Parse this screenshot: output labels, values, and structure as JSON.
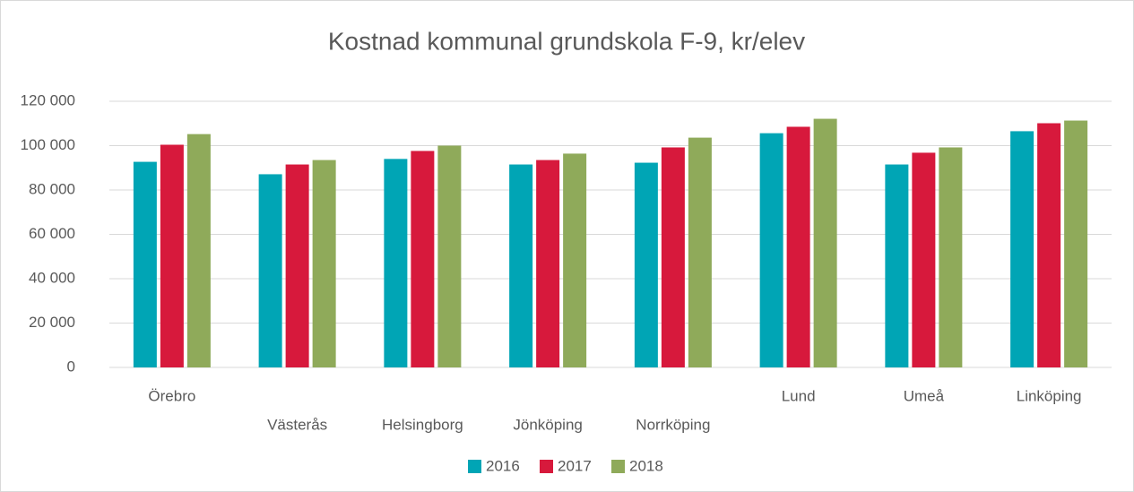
{
  "chart_data": {
    "type": "bar",
    "title": "Kostnad kommunal grundskola F-9, kr/elev",
    "categories": [
      "Örebro",
      "Västerås",
      "Helsingborg",
      "Jönköping",
      "Norrköping",
      "Lund",
      "Umeå",
      "Linköping"
    ],
    "series": [
      {
        "name": "2016",
        "color": "#00a5b5",
        "values": [
          92700,
          87100,
          94000,
          91500,
          92300,
          105600,
          91500,
          106500
        ]
      },
      {
        "name": "2017",
        "color": "#d7193c",
        "values": [
          100400,
          91500,
          97600,
          93500,
          99200,
          108500,
          96800,
          110100
        ]
      },
      {
        "name": "2018",
        "color": "#8faa5a",
        "values": [
          105200,
          93500,
          100000,
          96400,
          103600,
          112100,
          99200,
          111300
        ]
      }
    ],
    "ylim": [
      0,
      120000
    ],
    "yticks": [
      0,
      {
        "value": 20000,
        "label": "20 000"
      },
      {
        "value": 40000,
        "label": "40 000"
      },
      {
        "value": 60000,
        "label": "60 000"
      },
      {
        "value": 80000,
        "label": "80 000"
      },
      {
        "value": 100000,
        "label": "100 000"
      },
      {
        "value": 120000,
        "label": "120 000"
      }
    ],
    "grid": true,
    "legend": "bottom"
  }
}
